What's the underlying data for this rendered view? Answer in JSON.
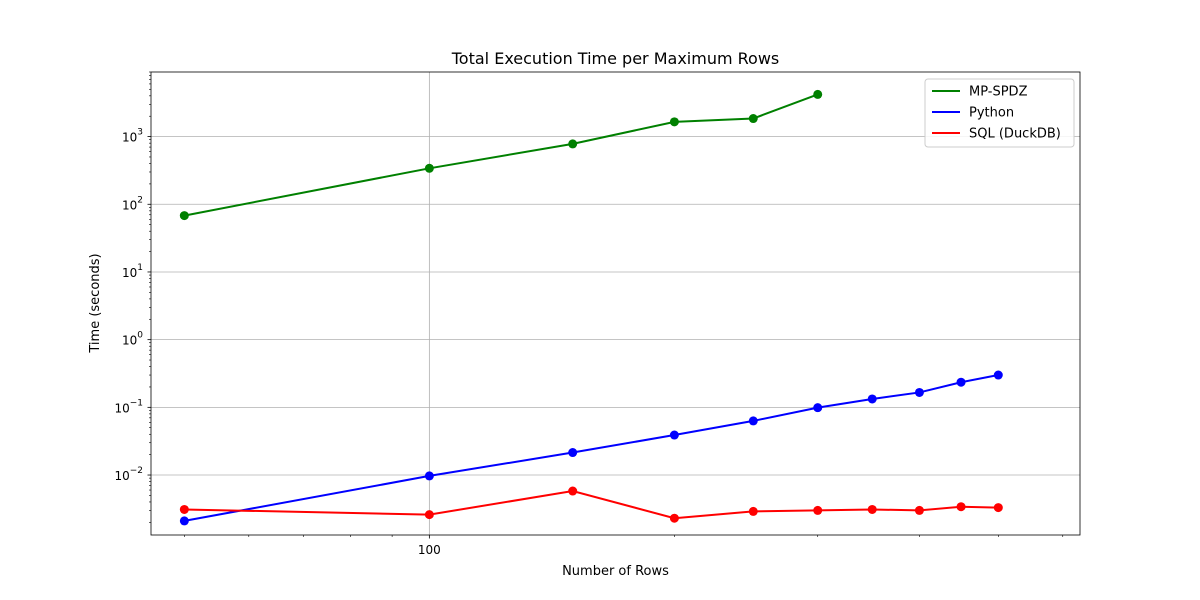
{
  "chart_data": {
    "type": "line",
    "title": "Total Execution Time per Maximum Rows",
    "xlabel": "Number of Rows",
    "ylabel": "Time (seconds)",
    "xscale": "log",
    "yscale": "log",
    "xlim": [
      45.5,
      630
    ],
    "ylim": [
      0.0013,
      9000
    ],
    "grid": true,
    "legend_position": "top-right",
    "x_ticks": [
      {
        "value": 100,
        "label": "100"
      }
    ],
    "y_ticks": [
      {
        "value": 0.01,
        "base": "10",
        "exp": "−2"
      },
      {
        "value": 0.1,
        "base": "10",
        "exp": "−1"
      },
      {
        "value": 1,
        "base": "10",
        "exp": "0"
      },
      {
        "value": 10,
        "base": "10",
        "exp": "1"
      },
      {
        "value": 100,
        "base": "10",
        "exp": "2"
      },
      {
        "value": 1000,
        "base": "10",
        "exp": "3"
      }
    ],
    "series": [
      {
        "name": "MP-SPDZ",
        "color": "#008000",
        "x": [
          50,
          100,
          150,
          200,
          250,
          300
        ],
        "y": [
          68,
          340,
          780,
          1650,
          1850,
          4200
        ]
      },
      {
        "name": "Python",
        "color": "#0000ff",
        "x": [
          50,
          100,
          150,
          200,
          250,
          300,
          350,
          400,
          450,
          500
        ],
        "y": [
          0.0021,
          0.0097,
          0.0215,
          0.039,
          0.063,
          0.099,
          0.133,
          0.166,
          0.235,
          0.3
        ]
      },
      {
        "name": "SQL (DuckDB)",
        "color": "#ff0000",
        "x": [
          50,
          100,
          150,
          200,
          250,
          300,
          350,
          400,
          450,
          500
        ],
        "y": [
          0.0031,
          0.0026,
          0.0058,
          0.0023,
          0.0029,
          0.003,
          0.0031,
          0.003,
          0.0034,
          0.0033
        ]
      }
    ]
  }
}
